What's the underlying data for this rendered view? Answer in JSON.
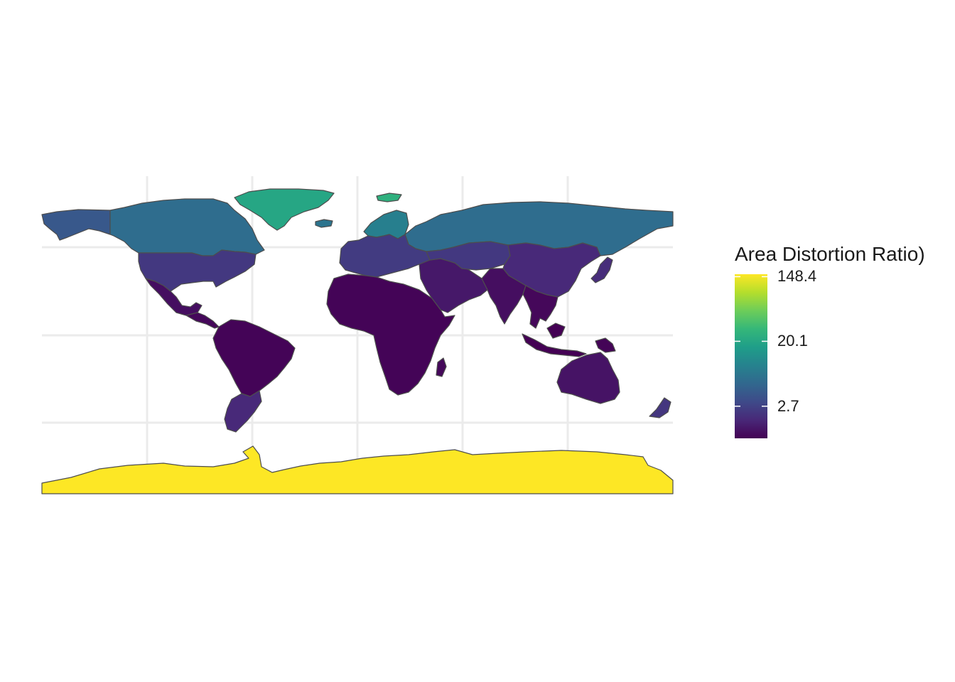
{
  "legend": {
    "title": "Area Distortion Ratio)",
    "breaks": [
      {
        "label": "148.4",
        "value": 148.4
      },
      {
        "label": "20.1",
        "value": 20.1
      },
      {
        "label": "2.7",
        "value": 2.7
      }
    ],
    "scale": "log",
    "range": [
      1.0,
      160.0
    ],
    "palette": [
      "#440154",
      "#482878",
      "#3E4A89",
      "#31688E",
      "#26828E",
      "#1F9E89",
      "#35B779",
      "#6DCD59",
      "#B4DE2C",
      "#FDE725"
    ]
  },
  "colors": {
    "background": "#ffffff",
    "grid": "#ebebeb",
    "border": "#4d4d4d"
  },
  "chart_data": {
    "type": "choropleth",
    "legend_title": "Area Distortion Ratio)",
    "fill_scale": "log",
    "legend_ticks": [
      148.4,
      20.1,
      2.7
    ],
    "grid": true,
    "legend_position": "right",
    "regions": [
      {
        "name": "Antarctica",
        "value": 160
      },
      {
        "name": "Greenland",
        "value": 20
      },
      {
        "name": "Svalbard",
        "value": 25
      },
      {
        "name": "Iceland",
        "value": 7
      },
      {
        "name": "Alaska",
        "value": 4
      },
      {
        "name": "Canada",
        "value": 6
      },
      {
        "name": "Russia",
        "value": 6
      },
      {
        "name": "Scandinavia",
        "value": 9
      },
      {
        "name": "United States",
        "value": 2.3
      },
      {
        "name": "Mexico",
        "value": 1.2
      },
      {
        "name": "Central America",
        "value": 1.1
      },
      {
        "name": "South America",
        "value": 1.05
      },
      {
        "name": "Argentina and Chile",
        "value": 1.8
      },
      {
        "name": "Europe",
        "value": 2.4
      },
      {
        "name": "Africa",
        "value": 1.05
      },
      {
        "name": "Madagascar",
        "value": 1.1
      },
      {
        "name": "Middle East",
        "value": 1.4
      },
      {
        "name": "Central Asia",
        "value": 2.3
      },
      {
        "name": "China",
        "value": 1.8
      },
      {
        "name": "India",
        "value": 1.2
      },
      {
        "name": "Southeast Asia",
        "value": 1.1
      },
      {
        "name": "Japan",
        "value": 1.9
      },
      {
        "name": "Indonesia",
        "value": 1.0
      },
      {
        "name": "Papua New Guinea",
        "value": 1.05
      },
      {
        "name": "Australia",
        "value": 1.3
      },
      {
        "name": "New Zealand",
        "value": 2.2
      }
    ]
  }
}
